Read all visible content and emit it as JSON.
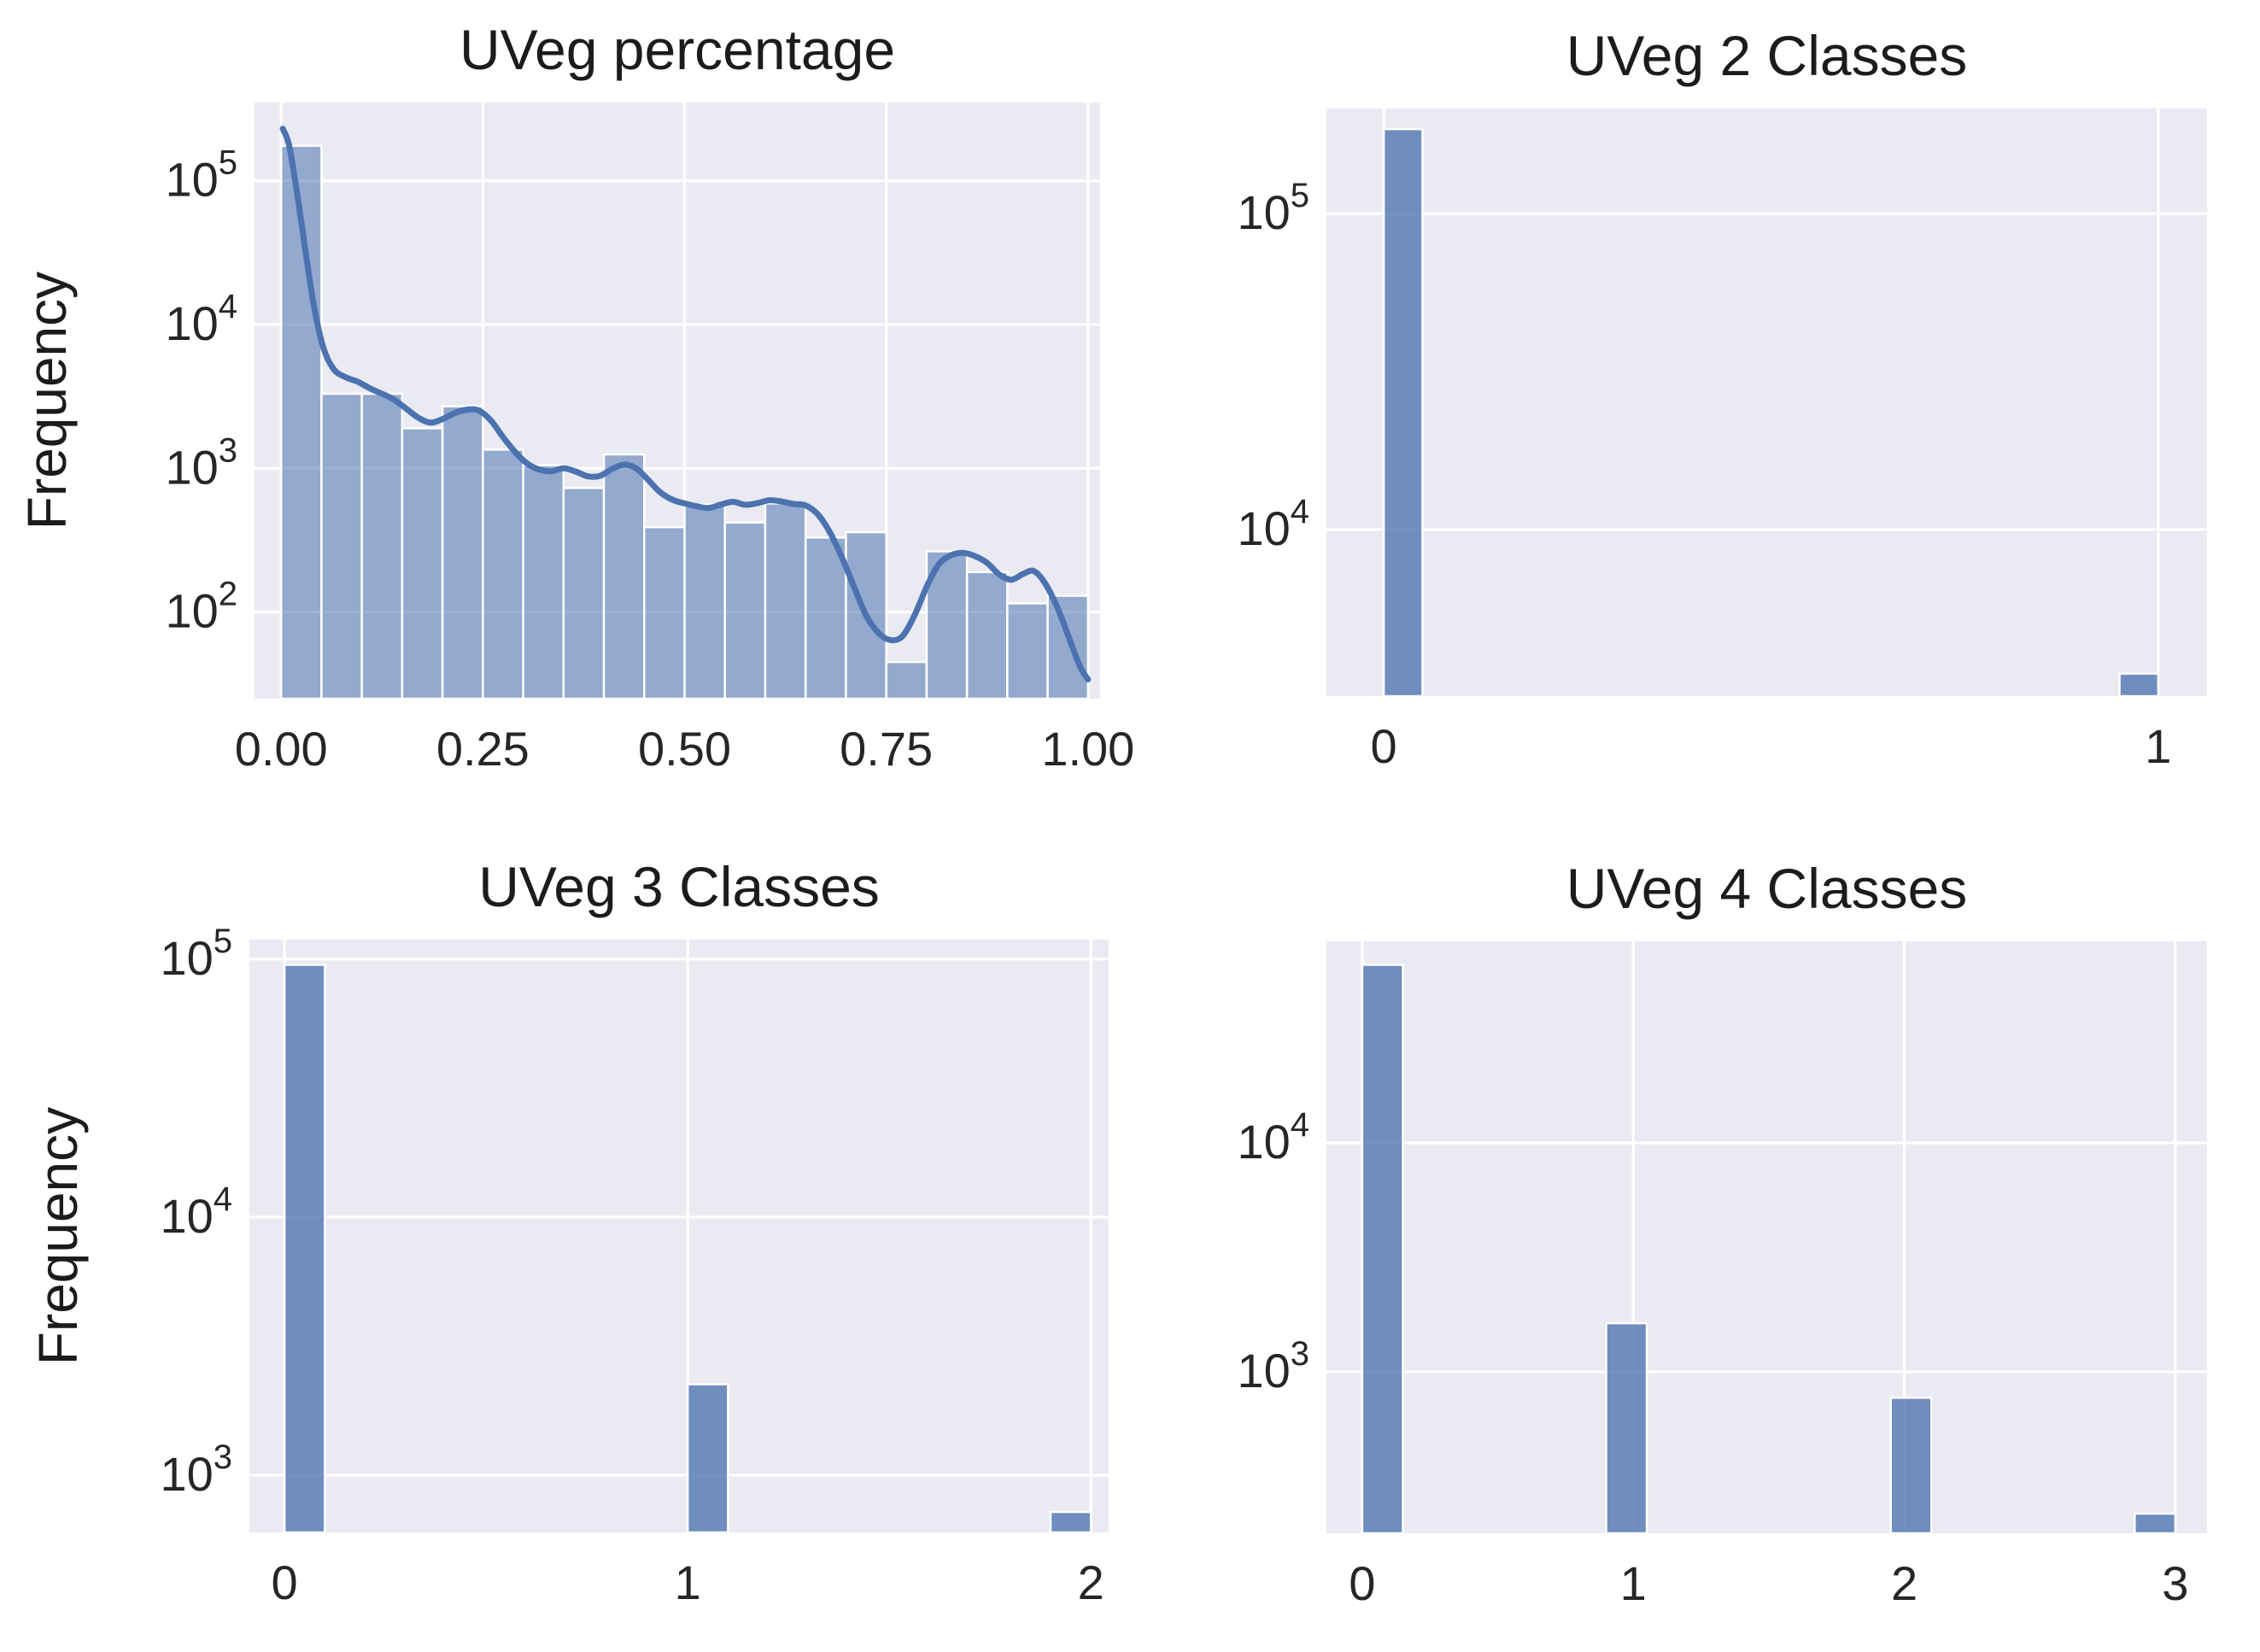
{
  "figure": {
    "background": "#ffffff",
    "plot_background": "#eaeaf2",
    "grid_color": "#ffffff",
    "text_color": "#262626",
    "bar_base_color": "#4c72b0",
    "kde_color": "#4c72b0"
  },
  "chart_data": [
    {
      "type": "bar",
      "subtype": "histogram-with-kde",
      "title": "UVeg percentage",
      "ylabel": "Frequency",
      "yscale": "log",
      "grid": true,
      "xlim": [
        -0.033,
        1.015
      ],
      "ylim": [
        25,
        350000
      ],
      "y_tick_exponents": [
        5,
        4,
        3,
        2
      ],
      "x_ticks": [
        {
          "v": 0.0,
          "label": "0.00"
        },
        {
          "v": 0.25,
          "label": "0.25"
        },
        {
          "v": 0.5,
          "label": "0.50"
        },
        {
          "v": 0.75,
          "label": "0.75"
        },
        {
          "v": 1.0,
          "label": "1.00"
        }
      ],
      "bar_alpha": 0.55,
      "bars": [
        {
          "x0": 0.0,
          "x1": 0.05,
          "v": 175000
        },
        {
          "x0": 0.05,
          "x1": 0.1,
          "v": 3300
        },
        {
          "x0": 0.1,
          "x1": 0.15,
          "v": 3300
        },
        {
          "x0": 0.15,
          "x1": 0.2,
          "v": 1900
        },
        {
          "x0": 0.2,
          "x1": 0.25,
          "v": 2700
        },
        {
          "x0": 0.25,
          "x1": 0.3,
          "v": 1350
        },
        {
          "x0": 0.3,
          "x1": 0.35,
          "v": 1050
        },
        {
          "x0": 0.35,
          "x1": 0.4,
          "v": 730
        },
        {
          "x0": 0.4,
          "x1": 0.45,
          "v": 1250
        },
        {
          "x0": 0.45,
          "x1": 0.5,
          "v": 390
        },
        {
          "x0": 0.5,
          "x1": 0.55,
          "v": 560
        },
        {
          "x0": 0.55,
          "x1": 0.6,
          "v": 420
        },
        {
          "x0": 0.6,
          "x1": 0.65,
          "v": 570
        },
        {
          "x0": 0.65,
          "x1": 0.7,
          "v": 330
        },
        {
          "x0": 0.7,
          "x1": 0.75,
          "v": 360
        },
        {
          "x0": 0.75,
          "x1": 0.8,
          "v": 45
        },
        {
          "x0": 0.8,
          "x1": 0.85,
          "v": 265
        },
        {
          "x0": 0.85,
          "x1": 0.9,
          "v": 190
        },
        {
          "x0": 0.9,
          "x1": 0.95,
          "v": 115
        },
        {
          "x0": 0.95,
          "x1": 1.0,
          "v": 130
        }
      ],
      "kde": [
        [
          0.002,
          230000
        ],
        [
          0.01,
          175000
        ],
        [
          0.02,
          80000
        ],
        [
          0.03,
          33000
        ],
        [
          0.04,
          14000
        ],
        [
          0.052,
          7000
        ],
        [
          0.065,
          4900
        ],
        [
          0.08,
          4300
        ],
        [
          0.095,
          4000
        ],
        [
          0.11,
          3600
        ],
        [
          0.125,
          3300
        ],
        [
          0.14,
          3000
        ],
        [
          0.155,
          2600
        ],
        [
          0.17,
          2250
        ],
        [
          0.185,
          2080
        ],
        [
          0.2,
          2200
        ],
        [
          0.215,
          2420
        ],
        [
          0.23,
          2560
        ],
        [
          0.245,
          2520
        ],
        [
          0.26,
          2150
        ],
        [
          0.275,
          1650
        ],
        [
          0.29,
          1300
        ],
        [
          0.305,
          1080
        ],
        [
          0.32,
          980
        ],
        [
          0.335,
          955
        ],
        [
          0.35,
          1000
        ],
        [
          0.365,
          950
        ],
        [
          0.38,
          880
        ],
        [
          0.395,
          885
        ],
        [
          0.41,
          990
        ],
        [
          0.425,
          1060
        ],
        [
          0.44,
          1000
        ],
        [
          0.455,
          830
        ],
        [
          0.47,
          680
        ],
        [
          0.485,
          605
        ],
        [
          0.5,
          570
        ],
        [
          0.515,
          545
        ],
        [
          0.53,
          530
        ],
        [
          0.545,
          560
        ],
        [
          0.56,
          585
        ],
        [
          0.575,
          558
        ],
        [
          0.59,
          572
        ],
        [
          0.605,
          600
        ],
        [
          0.62,
          588
        ],
        [
          0.635,
          565
        ],
        [
          0.65,
          552
        ],
        [
          0.665,
          480
        ],
        [
          0.68,
          360
        ],
        [
          0.695,
          240
        ],
        [
          0.71,
          150
        ],
        [
          0.725,
          95
        ],
        [
          0.74,
          72
        ],
        [
          0.755,
          64
        ],
        [
          0.77,
          68
        ],
        [
          0.785,
          95
        ],
        [
          0.8,
          150
        ],
        [
          0.815,
          215
        ],
        [
          0.83,
          248
        ],
        [
          0.845,
          258
        ],
        [
          0.86,
          245
        ],
        [
          0.875,
          220
        ],
        [
          0.89,
          183
        ],
        [
          0.905,
          168
        ],
        [
          0.92,
          185
        ],
        [
          0.933,
          193
        ],
        [
          0.947,
          158
        ],
        [
          0.962,
          108
        ],
        [
          0.977,
          65
        ],
        [
          0.99,
          42
        ],
        [
          1.0,
          34
        ]
      ]
    },
    {
      "type": "bar",
      "subtype": "histogram",
      "title": "UVeg 2 Classes",
      "ylabel": "",
      "yscale": "log",
      "grid": true,
      "xlim": [
        -0.074,
        1.063
      ],
      "ylim": [
        2970,
        215000
      ],
      "y_tick_exponents": [
        5,
        4
      ],
      "x_ticks": [
        {
          "v": 0,
          "label": "0"
        },
        {
          "v": 1,
          "label": "1"
        }
      ],
      "bar_alpha": 0.78,
      "bars": [
        {
          "x0": 0.0,
          "x1": 0.05,
          "v": 185000
        },
        {
          "x0": 0.95,
          "x1": 1.0,
          "v": 3500
        }
      ],
      "kde": null
    },
    {
      "type": "bar",
      "subtype": "histogram",
      "title": "UVeg 3 Classes",
      "ylabel": "Frequency",
      "yscale": "log",
      "grid": true,
      "xlim": [
        -0.087,
        2.044
      ],
      "ylim": [
        600,
        119000
      ],
      "y_tick_exponents": [
        5,
        4,
        3
      ],
      "x_ticks": [
        {
          "v": 0,
          "label": "0"
        },
        {
          "v": 1,
          "label": "1"
        },
        {
          "v": 2,
          "label": "2"
        }
      ],
      "bar_alpha": 0.78,
      "bars": [
        {
          "x0": 0.0,
          "x1": 0.1,
          "v": 95000
        },
        {
          "x0": 1.0,
          "x1": 1.1,
          "v": 2250
        },
        {
          "x0": 1.9,
          "x1": 2.0,
          "v": 720
        }
      ],
      "kde": null
    },
    {
      "type": "bar",
      "subtype": "histogram",
      "title": "UVeg 4 Classes",
      "ylabel": "",
      "yscale": "log",
      "grid": true,
      "xlim": [
        -0.132,
        3.117
      ],
      "ylim": [
        197,
        76000
      ],
      "y_tick_exponents": [
        4,
        3
      ],
      "x_ticks": [
        {
          "v": 0,
          "label": "0"
        },
        {
          "v": 1,
          "label": "1"
        },
        {
          "v": 2,
          "label": "2"
        },
        {
          "v": 3,
          "label": "3"
        }
      ],
      "bar_alpha": 0.78,
      "bars": [
        {
          "x0": 0.0,
          "x1": 0.15,
          "v": 60000
        },
        {
          "x0": 0.9,
          "x1": 1.05,
          "v": 1630
        },
        {
          "x0": 1.95,
          "x1": 2.1,
          "v": 770
        },
        {
          "x0": 2.85,
          "x1": 3.0,
          "v": 240
        }
      ],
      "kde": null
    }
  ]
}
